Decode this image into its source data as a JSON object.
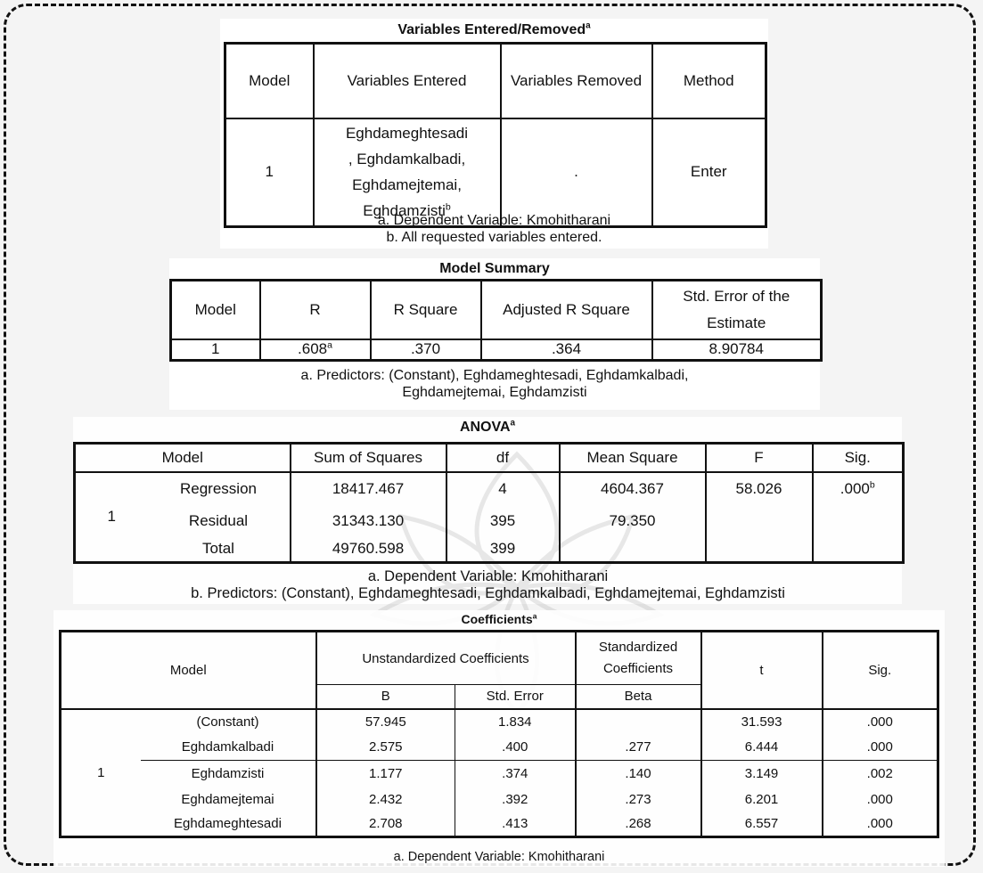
{
  "t1": {
    "title": "Variables Entered/Removed",
    "title_sup": "a",
    "headers": [
      "Model",
      "Variables Entered",
      "Variables Removed",
      "Method"
    ],
    "model": "1",
    "entered_lines": [
      "Eghdameghtesadi",
      ", Eghdamkalbadi,",
      "Eghdamejtemai,",
      "Eghdamzisti"
    ],
    "entered_sup": "b",
    "removed": ".",
    "method": "Enter",
    "notes": [
      "a. Dependent Variable: Kmohitharani",
      "b. All requested variables entered."
    ]
  },
  "t2": {
    "title": "Model Summary",
    "headers": [
      "Model",
      "R",
      "R Square",
      "Adjusted R Square",
      "Std. Error of the Estimate"
    ],
    "row": {
      "model": "1",
      "r": ".608",
      "r_sup": "a",
      "r_square": ".370",
      "adj_r_square": ".364",
      "std_error": "8.90784"
    },
    "notes": [
      "a. Predictors: (Constant), Eghdameghtesadi, Eghdamkalbadi,",
      "Eghdamejtemai, Eghdamzisti"
    ]
  },
  "t3": {
    "title": "ANOVA",
    "title_sup": "a",
    "headers": [
      "Model",
      "Sum of Squares",
      "df",
      "Mean Square",
      "F",
      "Sig."
    ],
    "model": "1",
    "rows": [
      {
        "name": "Regression",
        "ss": "18417.467",
        "df": "4",
        "ms": "4604.367",
        "f": "58.026",
        "sig": ".000",
        "sig_sup": "b"
      },
      {
        "name": "Residual",
        "ss": "31343.130",
        "df": "395",
        "ms": "79.350",
        "f": "",
        "sig": "",
        "sig_sup": ""
      },
      {
        "name": "Total",
        "ss": "49760.598",
        "df": "399",
        "ms": "",
        "f": "",
        "sig": "",
        "sig_sup": ""
      }
    ],
    "notes": [
      "a. Dependent Variable: Kmohitharani",
      "b. Predictors: (Constant), Eghdameghtesadi, Eghdamkalbadi, Eghdamejtemai, Eghdamzisti"
    ]
  },
  "t4": {
    "title": "Coefficients",
    "title_sup": "a",
    "headers": {
      "model": "Model",
      "unstd": "Unstandardized Coefficients",
      "std_lines": [
        "Standardized",
        "Coefficients"
      ],
      "t": "t",
      "sig": "Sig.",
      "b": "B",
      "se": "Std. Error",
      "beta": "Beta"
    },
    "model": "1",
    "rows": [
      {
        "name": "(Constant)",
        "b": "57.945",
        "se": "1.834",
        "beta": "",
        "t": "31.593",
        "sig": ".000"
      },
      {
        "name": "Eghdamkalbadi",
        "b": "2.575",
        "se": ".400",
        "beta": ".277",
        "t": "6.444",
        "sig": ".000"
      },
      {
        "name": "Eghdamzisti",
        "b": "1.177",
        "se": ".374",
        "beta": ".140",
        "t": "3.149",
        "sig": ".002"
      },
      {
        "name": "Eghdamejtemai",
        "b": "2.432",
        "se": ".392",
        "beta": ".273",
        "t": "6.201",
        "sig": ".000"
      },
      {
        "name": "Eghdameghtesadi",
        "b": "2.708",
        "se": ".413",
        "beta": ".268",
        "t": "6.557",
        "sig": ".000"
      }
    ],
    "note": "a. Dependent Variable: Kmohitharani"
  }
}
